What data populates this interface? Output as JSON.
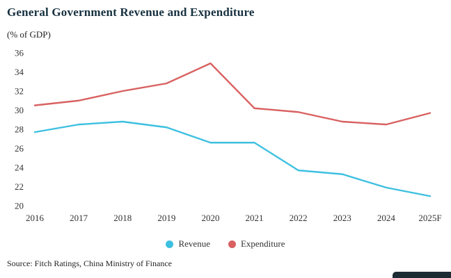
{
  "chart_data": {
    "type": "line",
    "title": "General Government Revenue and Expenditure",
    "subtitle": "(% of GDP)",
    "categories": [
      "2016",
      "2017",
      "2018",
      "2019",
      "2020",
      "2021",
      "2022",
      "2023",
      "2024",
      "2025F"
    ],
    "series": [
      {
        "name": "Revenue",
        "color": "#3dc0e0",
        "values": [
          27.7,
          28.5,
          28.8,
          28.2,
          26.6,
          26.6,
          23.7,
          23.3,
          21.9,
          21.0
        ]
      },
      {
        "name": "Expenditure",
        "color": "#d96161",
        "values": [
          30.5,
          31.0,
          32.0,
          32.8,
          34.9,
          30.2,
          29.8,
          28.8,
          28.5,
          29.7
        ]
      }
    ],
    "ylim": [
      20,
      36
    ],
    "yticks": [
      20,
      22,
      24,
      26,
      28,
      30,
      32,
      34,
      36
    ],
    "grid": false,
    "legend_position": "bottom"
  },
  "source": "Source: Fitch Ratings, China Ministry of Finance"
}
